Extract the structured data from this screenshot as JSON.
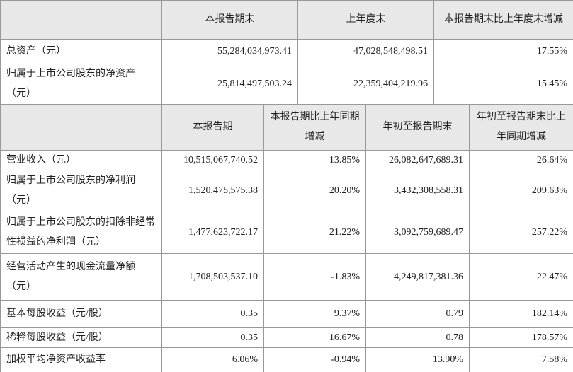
{
  "top_table": {
    "headers": [
      "本报告期末",
      "上年度末",
      "本报告期末比上年度末增减"
    ],
    "rows": [
      [
        "总资产（元）",
        "55,284,034,973.41",
        "47,028,548,498.51",
        "17.55%"
      ],
      [
        "归属于上市公司股东的净资产（元）",
        "25,814,497,503.24",
        "22,359,404,219.96",
        "15.45%"
      ]
    ]
  },
  "bottom_table": {
    "headers": [
      "本报告期",
      "本报告期比上年同期增减",
      "年初至报告期末",
      "年初至报告期末比上年同期增减"
    ],
    "rows": [
      [
        "营业收入（元）",
        "10,515,067,740.52",
        "13.85%",
        "26,082,647,689.31",
        "26.64%"
      ],
      [
        "归属于上市公司股东的净利润（元）",
        "1,520,475,575.38",
        "20.20%",
        "3,432,308,558.31",
        "209.63%"
      ],
      [
        "归属于上市公司股东的扣除非经常性损益的净利润（元）",
        "1,477,623,722.17",
        "21.22%",
        "3,092,759,689.47",
        "257.22%"
      ],
      [
        "经营活动产生的现金流量净额（元）",
        "1,708,503,537.10",
        "-1.83%",
        "4,249,817,381.36",
        "22.47%"
      ],
      [
        "基本每股收益（元/股）",
        "0.35",
        "9.37%",
        "0.79",
        "182.14%"
      ],
      [
        "稀释每股收益（元/股）",
        "0.35",
        "16.67%",
        "0.78",
        "178.57%"
      ],
      [
        "加权平均净资产收益率",
        "6.06%",
        "-0.94%",
        "13.90%",
        "7.58%"
      ]
    ]
  }
}
